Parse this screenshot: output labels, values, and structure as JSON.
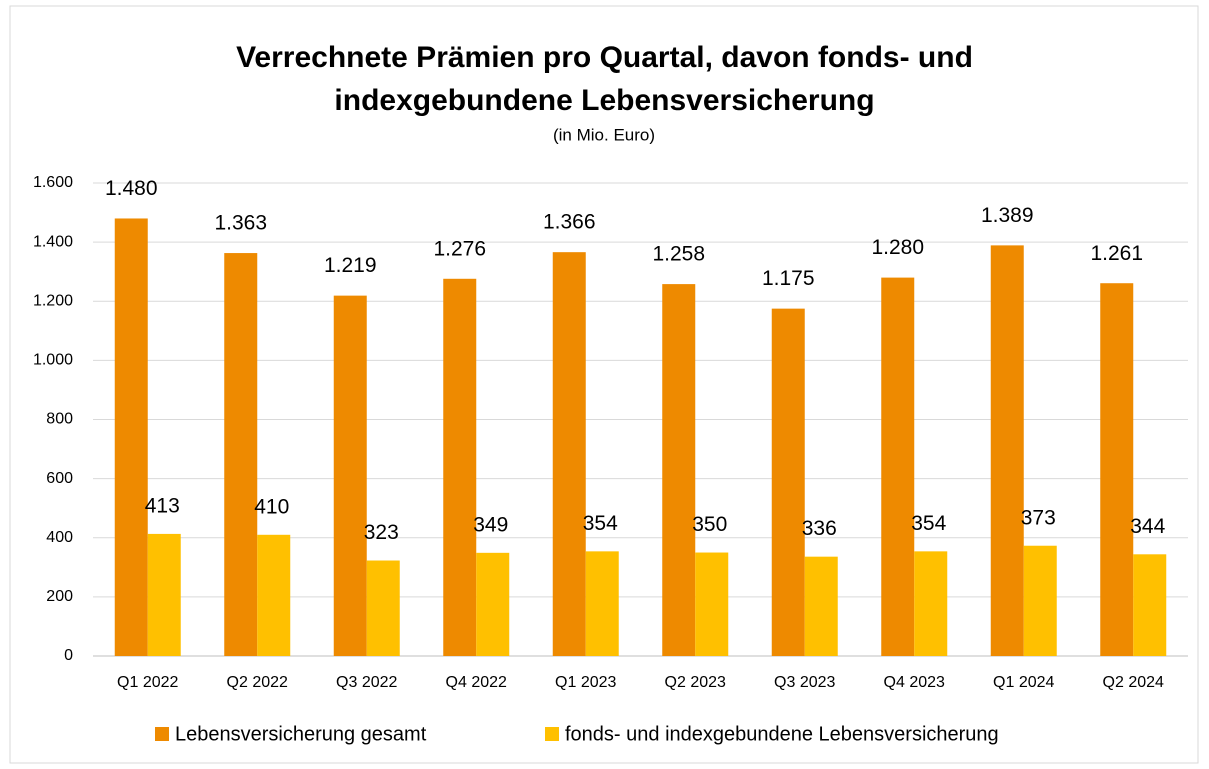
{
  "chart_data": {
    "type": "bar",
    "title": "Verrechnete Prämien pro Quartal, davon fonds- und indexgebundene Lebensversicherung",
    "subtitle": "(in Mio. Euro)",
    "categories": [
      "Q1 2022",
      "Q2 2022",
      "Q3 2022",
      "Q4 2022",
      "Q1 2023",
      "Q2 2023",
      "Q3 2023",
      "Q4 2023",
      "Q1 2024",
      "Q2 2024"
    ],
    "series": [
      {
        "name": "Lebensversicherung gesamt",
        "color": "#ee8a00",
        "values": [
          1480,
          1363,
          1219,
          1276,
          1366,
          1258,
          1175,
          1280,
          1389,
          1261
        ],
        "value_labels": [
          "1.480",
          "1.363",
          "1.219",
          "1.276",
          "1.366",
          "1.258",
          "1.175",
          "1.280",
          "1.389",
          "1.261"
        ]
      },
      {
        "name": "fonds- und indexgebundene Lebensversicherung",
        "color": "#ffc000",
        "values": [
          413,
          410,
          323,
          349,
          354,
          350,
          336,
          354,
          373,
          344
        ]
      }
    ],
    "ylim": [
      0,
      1600
    ],
    "yticks": [
      0,
      200,
      400,
      600,
      800,
      {
        "value": 1000,
        "label": "1.000"
      },
      {
        "value": 1200,
        "label": "1.200"
      },
      {
        "value": 1400,
        "label": "1.400"
      },
      {
        "value": 1600,
        "label": "1.600"
      }
    ],
    "grid": true,
    "legend": "bottom"
  }
}
